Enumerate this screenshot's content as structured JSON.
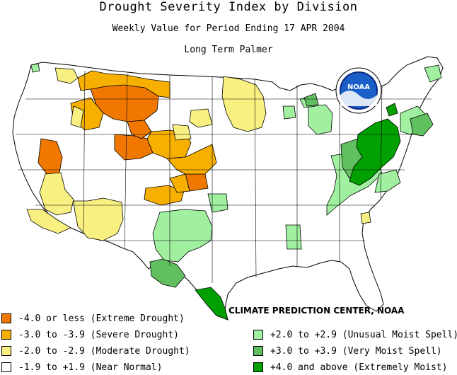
{
  "title": "Drought Severity Index by Division",
  "subtitle": "Weekly Value for Period Ending 17 APR 2004",
  "index_name": "Long Term Palmer",
  "credit": "CLIMATE PREDICTION CENTER, NOAA",
  "logo": {
    "text": "NOAA",
    "icon": "noaa-logo-icon"
  },
  "colors": {
    "extreme_drought": "#f07800",
    "severe_drought": "#f8b000",
    "moderate_drought": "#f8f080",
    "near_normal": "#ffffff",
    "unusual_moist": "#a0f0a0",
    "very_moist": "#60c060",
    "extremely_moist": "#00a000",
    "outline": "#000000"
  },
  "legend": {
    "left": [
      {
        "label": "-4.0 or less (Extreme Drought)",
        "color": "#f07800"
      },
      {
        "label": "-3.0 to -3.9 (Severe Drought)",
        "color": "#f8b000"
      },
      {
        "label": "-2.0 to -2.9 (Moderate Drought)",
        "color": "#f8f080"
      },
      {
        "label": "-1.9 to +1.9 (Near Normal)",
        "color": "#ffffff"
      }
    ],
    "right": [
      {
        "label": "+2.0 to +2.9 (Unusual Moist Spell)",
        "color": "#a0f0a0"
      },
      {
        "label": "+3.0 to +3.9 (Very Moist Spell)",
        "color": "#60c060"
      },
      {
        "label": "+4.0 and above (Extremely Moist)",
        "color": "#00a000"
      }
    ]
  }
}
